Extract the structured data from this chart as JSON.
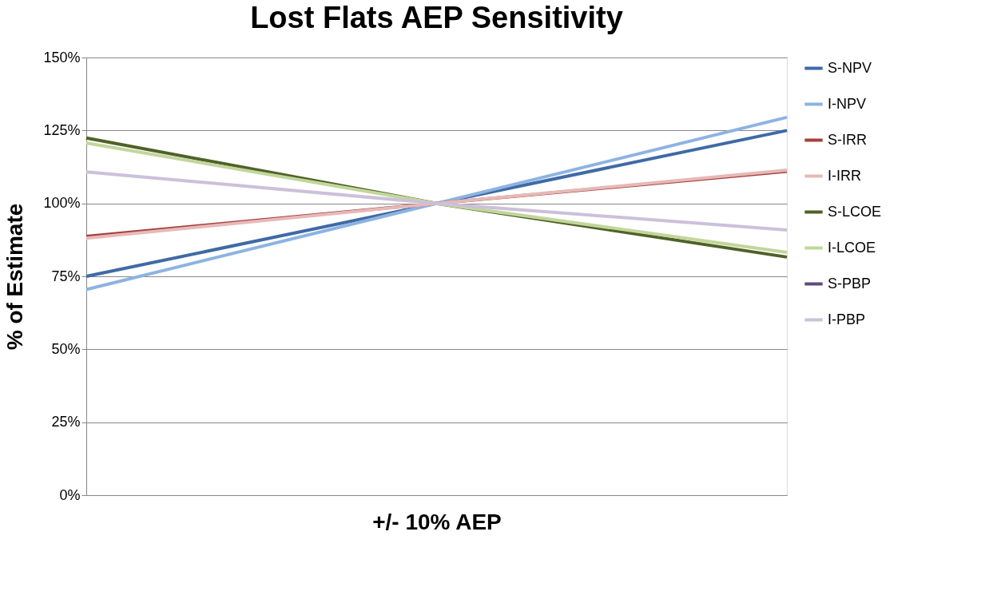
{
  "chart_data": {
    "type": "line",
    "title": "Lost Flats AEP Sensitivity",
    "xlabel": "+/- 10% AEP",
    "ylabel": "% of Estimate",
    "categories": [
      null,
      null,
      null
    ],
    "series": [
      {
        "name": "S-NPV",
        "color": "#3f6aa6",
        "values": [
          75,
          100,
          125
        ]
      },
      {
        "name": "I-NPV",
        "color": "#8db3e2",
        "values": [
          70.5,
          100,
          129.5
        ]
      },
      {
        "name": "S-IRR",
        "color": "#a5403c",
        "values": [
          88.7,
          100,
          111
        ]
      },
      {
        "name": "I-IRR",
        "color": "#e6b9b8",
        "values": [
          88.1,
          100,
          111.4
        ]
      },
      {
        "name": "S-LCOE",
        "color": "#4f6228",
        "values": [
          122.4,
          100,
          81.6
        ]
      },
      {
        "name": "I-LCOE",
        "color": "#c3d69b",
        "values": [
          120.7,
          100,
          83.2
        ]
      },
      {
        "name": "S-PBP",
        "color": "#604a7b",
        "values": [
          null,
          null,
          null
        ]
      },
      {
        "name": "I-PBP",
        "color": "#ccc0da",
        "values": [
          110.8,
          100,
          90.9
        ]
      }
    ],
    "ylim": [
      0,
      150
    ],
    "yticks": [
      {
        "value": 0,
        "label": "0%"
      },
      {
        "value": 25,
        "label": "25%"
      },
      {
        "value": 50,
        "label": "50%"
      },
      {
        "value": 75,
        "label": "75%"
      },
      {
        "value": 100,
        "label": "100%"
      },
      {
        "value": 125,
        "label": "125%"
      },
      {
        "value": 150,
        "label": "150%"
      }
    ],
    "grid": "y",
    "legend": "right",
    "marker": "none",
    "line_style": "solid"
  }
}
